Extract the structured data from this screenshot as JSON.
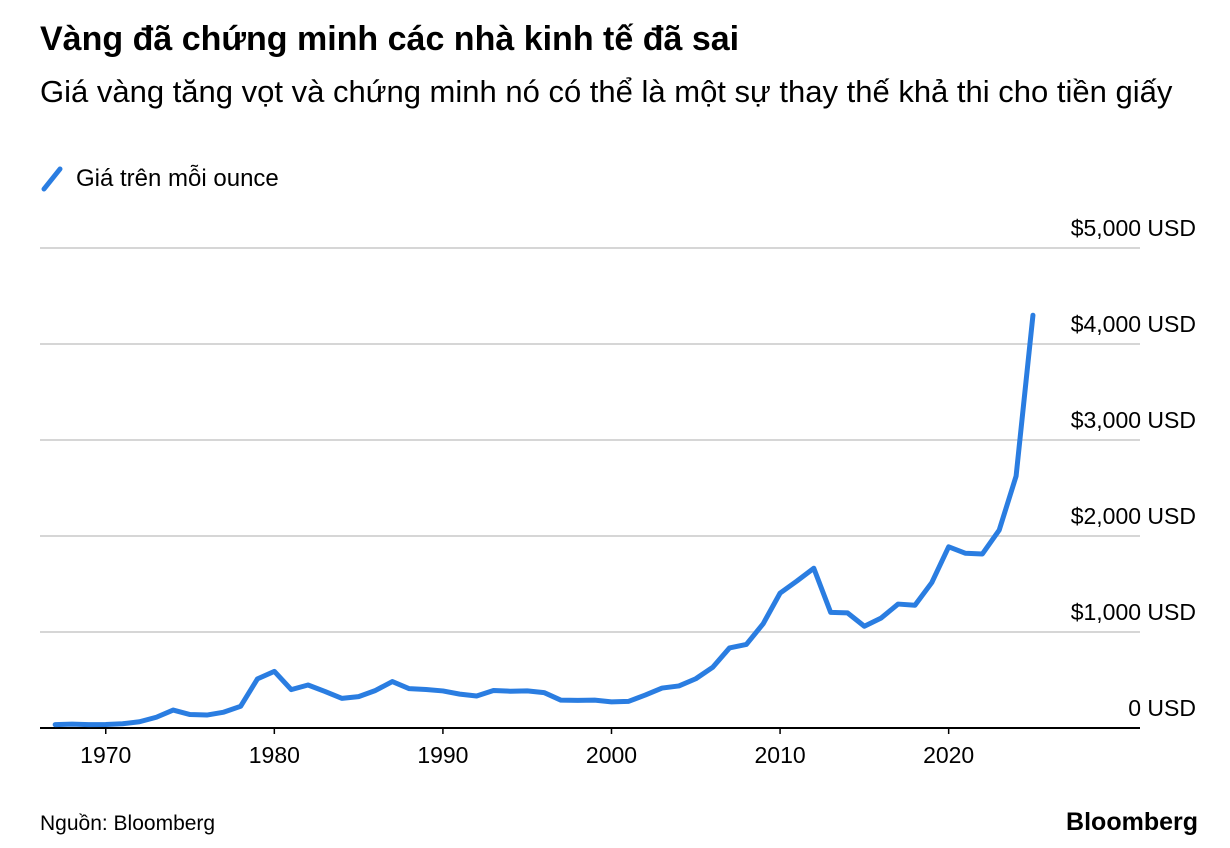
{
  "chart_data": {
    "type": "line",
    "title": "Vàng đã chứng minh các nhà kinh tế đã sai",
    "subtitle": "Giá vàng tăng vọt và chứng minh nó có thể là một sự thay thế khả thi cho tiền giấy",
    "source": "Nguồn: Bloomberg",
    "logo": "Bloomberg",
    "x": [
      1967,
      1968,
      1969,
      1970,
      1971,
      1972,
      1973,
      1974,
      1975,
      1976,
      1977,
      1978,
      1979,
      1980,
      1981,
      1982,
      1983,
      1984,
      1985,
      1986,
      1987,
      1988,
      1989,
      1990,
      1991,
      1992,
      1993,
      1994,
      1995,
      1996,
      1997,
      1998,
      1999,
      2000,
      2001,
      2002,
      2003,
      2004,
      2005,
      2006,
      2007,
      2008,
      2009,
      2010,
      2011,
      2012,
      2013,
      2014,
      2015,
      2016,
      2017,
      2018,
      2019,
      2020,
      2021,
      2022,
      2023,
      2024,
      2025
    ],
    "series": [
      {
        "name": "Giá trên mỗi ounce",
        "color": "#2a7de1",
        "values": [
          35,
          41,
          35,
          37,
          44,
          65,
          112,
          187,
          140,
          135,
          165,
          226,
          512,
          590,
          400,
          448,
          381,
          309,
          327,
          391,
          484,
          410,
          401,
          386,
          353,
          333,
          391,
          383,
          387,
          369,
          290,
          288,
          290,
          272,
          277,
          343,
          416,
          438,
          513,
          632,
          834,
          870,
          1087,
          1405,
          1531,
          1664,
          1204,
          1199,
          1060,
          1146,
          1291,
          1279,
          1515,
          1887,
          1820,
          1813,
          2062,
          2624,
          4300
        ]
      }
    ],
    "xlim": [
      1966.1,
      2031.35
    ],
    "xticks": [
      1970,
      1980,
      1990,
      2000,
      2010,
      2020
    ],
    "ylim": [
      0,
      5000
    ],
    "yticks": [
      {
        "value": 0,
        "label": "0 USD"
      },
      {
        "value": 1000,
        "label": "$1,000 USD"
      },
      {
        "value": 2000,
        "label": "$2,000 USD"
      },
      {
        "value": 3000,
        "label": "$3,000 USD"
      },
      {
        "value": 4000,
        "label": "$4,000 USD"
      },
      {
        "value": 5000,
        "label": "$5,000 USD"
      }
    ],
    "grid": true
  }
}
